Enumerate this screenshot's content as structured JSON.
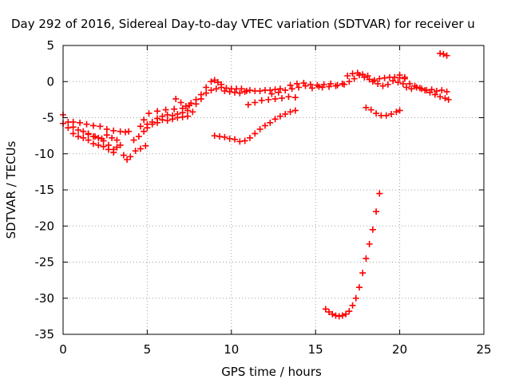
{
  "chart_data": {
    "type": "scatter",
    "title": "Day 292 of 2016, Sidereal Day-to-day VTEC variation (SDTVAR) for receiver u",
    "xlabel": "GPS time / hours",
    "ylabel": "SDTVAR / TECUs",
    "xlim": [
      0,
      25
    ],
    "ylim": [
      -35,
      5
    ],
    "xticks": [
      0,
      5,
      10,
      15,
      20,
      25
    ],
    "yticks": [
      5,
      0,
      -5,
      -10,
      -15,
      -20,
      -25,
      -30,
      -35
    ],
    "grid": true,
    "marker": "plus",
    "color": "#ff0000",
    "series": [
      {
        "points": [
          [
            0.0,
            -4.6
          ],
          [
            0.3,
            -5.6
          ],
          [
            0.6,
            -6.3
          ],
          [
            0.9,
            -6.7
          ],
          [
            1.2,
            -6.9
          ],
          [
            1.5,
            -7.3
          ],
          [
            1.8,
            -7.6
          ],
          [
            2.1,
            -7.8
          ],
          [
            2.4,
            -8.2
          ],
          [
            2.7,
            -8.8
          ],
          [
            3.0,
            -9.4
          ],
          [
            3.2,
            -9.1
          ],
          [
            0.0,
            -5.8
          ],
          [
            0.3,
            -6.4
          ],
          [
            0.6,
            -7.2
          ],
          [
            0.9,
            -7.6
          ],
          [
            1.2,
            -7.8
          ],
          [
            1.5,
            -8.1
          ],
          [
            1.8,
            -8.6
          ],
          [
            2.1,
            -8.8
          ],
          [
            2.4,
            -9.0
          ],
          [
            2.7,
            -9.4
          ],
          [
            3.0,
            -9.8
          ],
          [
            0.6,
            -5.6
          ],
          [
            1.0,
            -5.7
          ],
          [
            1.4,
            -5.9
          ],
          [
            1.8,
            -6.1
          ],
          [
            2.2,
            -6.2
          ],
          [
            2.6,
            -6.6
          ],
          [
            3.0,
            -6.8
          ],
          [
            3.4,
            -6.9
          ],
          [
            3.7,
            -7.0
          ],
          [
            3.9,
            -6.9
          ],
          [
            1.5,
            -7.2
          ],
          [
            1.9,
            -7.6
          ],
          [
            2.3,
            -7.9
          ],
          [
            2.6,
            -7.4
          ],
          [
            2.9,
            -7.8
          ],
          [
            3.2,
            -8.1
          ],
          [
            3.4,
            -8.8
          ],
          [
            3.6,
            -10.2
          ],
          [
            3.8,
            -10.8
          ],
          [
            4.0,
            -10.4
          ],
          [
            4.3,
            -9.6
          ],
          [
            4.6,
            -9.3
          ],
          [
            4.9,
            -8.9
          ],
          [
            4.2,
            -8.1
          ],
          [
            4.5,
            -7.6
          ],
          [
            4.8,
            -6.9
          ],
          [
            5.0,
            -6.4
          ],
          [
            5.3,
            -5.6
          ],
          [
            5.6,
            -5.1
          ],
          [
            5.9,
            -4.8
          ],
          [
            6.2,
            -4.6
          ],
          [
            6.5,
            -4.7
          ],
          [
            6.8,
            -4.5
          ],
          [
            7.1,
            -4.3
          ],
          [
            7.4,
            -4.0
          ],
          [
            4.6,
            -6.2
          ],
          [
            4.8,
            -5.3
          ],
          [
            5.0,
            -5.9
          ],
          [
            5.3,
            -5.9
          ],
          [
            5.6,
            -5.7
          ],
          [
            5.9,
            -5.3
          ],
          [
            6.2,
            -5.4
          ],
          [
            6.5,
            -5.2
          ],
          [
            6.8,
            -5.0
          ],
          [
            7.1,
            -4.9
          ],
          [
            7.4,
            -4.8
          ],
          [
            7.7,
            -4.2
          ],
          [
            5.1,
            -4.4
          ],
          [
            5.6,
            -4.1
          ],
          [
            6.1,
            -3.9
          ],
          [
            6.6,
            -3.8
          ],
          [
            7.1,
            -3.7
          ],
          [
            7.5,
            -3.3
          ],
          [
            6.7,
            -2.4
          ],
          [
            7.0,
            -2.9
          ],
          [
            7.3,
            -3.4
          ],
          [
            7.6,
            -3.0
          ],
          [
            7.9,
            -2.5
          ],
          [
            8.2,
            -1.8
          ],
          [
            8.5,
            -0.8
          ],
          [
            8.8,
            0.0
          ],
          [
            9.0,
            0.2
          ],
          [
            9.2,
            -0.1
          ],
          [
            9.4,
            -0.4
          ],
          [
            7.9,
            -3.1
          ],
          [
            8.2,
            -2.4
          ],
          [
            8.5,
            -1.6
          ],
          [
            8.8,
            -1.2
          ],
          [
            9.1,
            -1.0
          ],
          [
            9.4,
            -0.8
          ],
          [
            9.7,
            -0.9
          ],
          [
            10.0,
            -1.0
          ],
          [
            10.3,
            -1.0
          ],
          [
            10.6,
            -1.0
          ],
          [
            10.9,
            -1.3
          ],
          [
            9.6,
            -1.3
          ],
          [
            9.9,
            -1.4
          ],
          [
            10.2,
            -1.5
          ],
          [
            10.5,
            -1.6
          ],
          [
            10.8,
            -1.4
          ],
          [
            11.1,
            -1.2
          ],
          [
            11.4,
            -1.3
          ],
          [
            11.7,
            -1.3
          ],
          [
            12.0,
            -1.2
          ],
          [
            12.3,
            -1.2
          ],
          [
            12.6,
            -1.1
          ],
          [
            12.9,
            -1.0
          ],
          [
            11.0,
            -3.2
          ],
          [
            11.4,
            -2.9
          ],
          [
            11.8,
            -2.6
          ],
          [
            12.2,
            -2.5
          ],
          [
            12.6,
            -2.4
          ],
          [
            13.0,
            -2.3
          ],
          [
            13.4,
            -2.1
          ],
          [
            13.8,
            -2.2
          ],
          [
            12.4,
            -1.7
          ],
          [
            12.8,
            -1.5
          ],
          [
            13.2,
            -1.2
          ],
          [
            13.6,
            -1.0
          ],
          [
            14.0,
            -0.8
          ],
          [
            14.4,
            -0.6
          ],
          [
            14.8,
            -0.9
          ],
          [
            15.2,
            -0.7
          ],
          [
            13.5,
            -0.5
          ],
          [
            13.9,
            -0.3
          ],
          [
            14.3,
            -0.2
          ],
          [
            14.7,
            -0.4
          ],
          [
            15.1,
            -0.5
          ],
          [
            15.5,
            -0.4
          ],
          [
            15.9,
            -0.3
          ],
          [
            16.3,
            -0.5
          ],
          [
            16.7,
            -0.4
          ],
          [
            15.4,
            -0.8
          ],
          [
            15.8,
            -0.7
          ],
          [
            16.2,
            -0.6
          ],
          [
            16.6,
            -0.3
          ],
          [
            17.0,
            0.0
          ],
          [
            17.3,
            0.4
          ],
          [
            17.6,
            0.9
          ],
          [
            17.9,
            0.6
          ],
          [
            18.2,
            0.3
          ],
          [
            18.5,
            0.2
          ],
          [
            18.8,
            0.4
          ],
          [
            19.1,
            0.5
          ],
          [
            19.4,
            0.6
          ],
          [
            19.7,
            0.6
          ],
          [
            20.0,
            0.5
          ],
          [
            20.3,
            0.4
          ],
          [
            16.9,
            0.8
          ],
          [
            17.2,
            1.1
          ],
          [
            17.5,
            1.2
          ],
          [
            17.8,
            1.0
          ],
          [
            18.1,
            0.8
          ],
          [
            18.4,
            0.0
          ],
          [
            18.7,
            -0.3
          ],
          [
            19.0,
            -0.6
          ],
          [
            19.3,
            -0.4
          ],
          [
            19.6,
            0.1
          ],
          [
            19.9,
            -0.1
          ],
          [
            20.2,
            -0.3
          ],
          [
            20.0,
            0.9
          ],
          [
            20.3,
            0.6
          ],
          [
            20.6,
            -0.3
          ],
          [
            20.9,
            -0.6
          ],
          [
            21.2,
            -0.9
          ],
          [
            21.5,
            -1.2
          ],
          [
            21.8,
            -1.5
          ],
          [
            22.1,
            -1.8
          ],
          [
            22.4,
            -2.1
          ],
          [
            22.7,
            -2.3
          ],
          [
            22.9,
            -2.5
          ],
          [
            20.4,
            -0.8
          ],
          [
            20.7,
            -1.0
          ],
          [
            21.0,
            -0.8
          ],
          [
            21.3,
            -1.0
          ],
          [
            21.6,
            -1.2
          ],
          [
            21.9,
            -1.1
          ],
          [
            22.2,
            -1.3
          ],
          [
            22.5,
            -1.2
          ],
          [
            22.8,
            -1.4
          ],
          [
            18.0,
            -3.6
          ],
          [
            18.3,
            -3.9
          ],
          [
            18.6,
            -4.4
          ],
          [
            18.9,
            -4.7
          ],
          [
            19.2,
            -4.7
          ],
          [
            19.5,
            -4.5
          ],
          [
            19.8,
            -4.2
          ],
          [
            20.0,
            -4.0
          ],
          [
            22.4,
            3.9
          ],
          [
            22.6,
            3.8
          ],
          [
            22.8,
            3.6
          ],
          [
            9.0,
            -7.5
          ],
          [
            9.3,
            -7.6
          ],
          [
            9.6,
            -7.7
          ],
          [
            9.9,
            -7.9
          ],
          [
            10.2,
            -8.0
          ],
          [
            10.5,
            -8.3
          ],
          [
            10.8,
            -8.2
          ],
          [
            11.1,
            -7.8
          ],
          [
            11.4,
            -7.2
          ],
          [
            11.7,
            -6.6
          ],
          [
            12.0,
            -6.1
          ],
          [
            12.3,
            -5.7
          ],
          [
            12.6,
            -5.2
          ],
          [
            12.9,
            -4.8
          ],
          [
            13.2,
            -4.5
          ],
          [
            13.5,
            -4.2
          ],
          [
            13.8,
            -4.0
          ],
          [
            15.6,
            -31.5
          ],
          [
            15.8,
            -31.9
          ],
          [
            16.0,
            -32.2
          ],
          [
            16.2,
            -32.4
          ],
          [
            16.4,
            -32.5
          ],
          [
            16.6,
            -32.4
          ],
          [
            16.8,
            -32.2
          ],
          [
            17.0,
            -31.8
          ],
          [
            17.2,
            -31.0
          ],
          [
            17.4,
            -30.0
          ],
          [
            17.6,
            -28.5
          ],
          [
            17.8,
            -26.5
          ],
          [
            18.0,
            -24.5
          ],
          [
            18.2,
            -22.5
          ],
          [
            18.4,
            -20.5
          ],
          [
            18.6,
            -18.0
          ],
          [
            18.8,
            -15.5
          ]
        ]
      }
    ]
  }
}
